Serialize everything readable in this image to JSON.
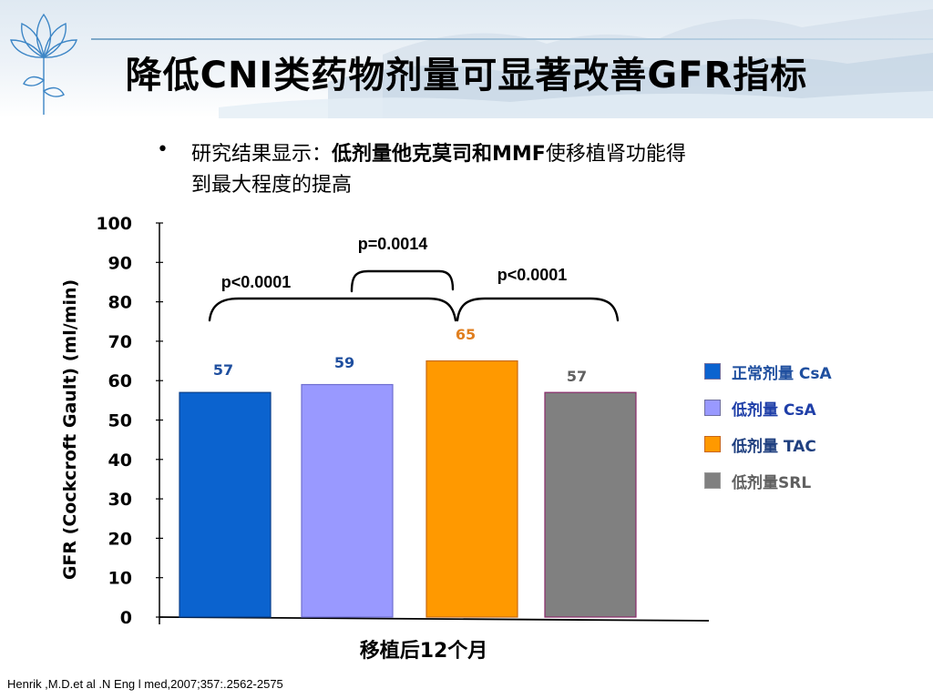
{
  "slide": {
    "title": "降低CNI类药物剂量可显著改善GFR指标",
    "bullet_symbol": "•",
    "bullet_prefix": "研究结果显示：",
    "bullet_highlight": "低剂量他克莫司和MMF",
    "bullet_suffix_line1": "使移植肾功能得",
    "bullet_line2": "到最大程度的提高",
    "citation": "Henrik ,M.D.et al .N Eng l med,2007;357:.2562-2575"
  },
  "colors": {
    "title": "#000000",
    "bar_normal_csa": "#0b63cf",
    "bar_low_csa": "#9999ff",
    "bar_low_tac": "#ff9900",
    "bar_low_srl": "#808080",
    "label_blue": "#1f4f9f",
    "label_orange": "#e07f1f",
    "label_gray": "#606060"
  },
  "chart_data": {
    "type": "bar",
    "xlabel": "移植后12个月",
    "ylabel": "GFR (Cockcroft Gault) (ml/min)",
    "ylim": [
      0,
      100
    ],
    "yticks": [
      "0",
      "10",
      "20",
      "30",
      "40",
      "50",
      "60",
      "70",
      "80",
      "90",
      "100"
    ],
    "series": [
      {
        "name": "正常剂量 CsA",
        "value": 57,
        "label": "57",
        "color": "#0b63cf",
        "label_color": "#1f4f9f",
        "legend_color": "#1f4f9f"
      },
      {
        "name": "低剂量 CsA",
        "value": 59,
        "label": "59",
        "color": "#9999ff",
        "label_color": "#1f4f9f",
        "legend_color": "#1f3fa8"
      },
      {
        "name": "低剂量  TAC",
        "value": 65,
        "label": "65",
        "color": "#ff9900",
        "label_color": "#e07f1f",
        "legend_color": "#1f3f7f"
      },
      {
        "name": "低剂量SRL",
        "value": 57,
        "label": "57",
        "color": "#808080",
        "label_color": "#606060",
        "legend_color": "#606060"
      }
    ],
    "comparisons": [
      {
        "between": [
          "正常剂量 CsA",
          "低剂量  TAC"
        ],
        "label": "p<0.0001"
      },
      {
        "between": [
          "低剂量 CsA",
          "低剂量  TAC"
        ],
        "label": "p=0.0014"
      },
      {
        "between": [
          "低剂量  TAC",
          "低剂量SRL"
        ],
        "label": "p<0.0001"
      }
    ],
    "legend_position": "right"
  }
}
